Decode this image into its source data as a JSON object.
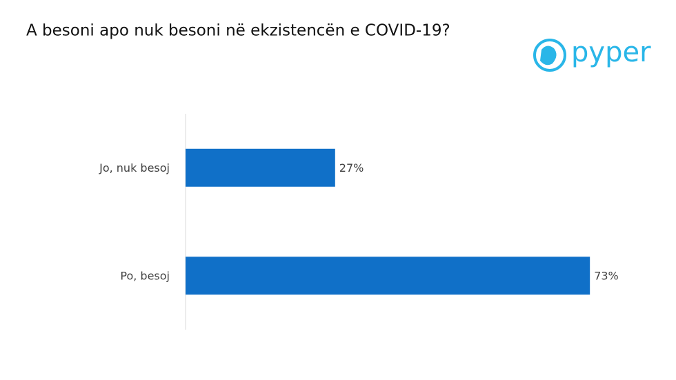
{
  "brand": "pyper",
  "chart_data": {
    "type": "barh",
    "title": "A besoni apo nuk besoni në ekzistencën e COVID-19?",
    "categories": [
      "Jo, nuk besoj",
      "Po, besoj"
    ],
    "values": [
      27,
      73
    ],
    "value_labels": [
      "27%",
      "73%"
    ],
    "color": "#1070c8",
    "xlim": [
      0,
      100
    ]
  }
}
